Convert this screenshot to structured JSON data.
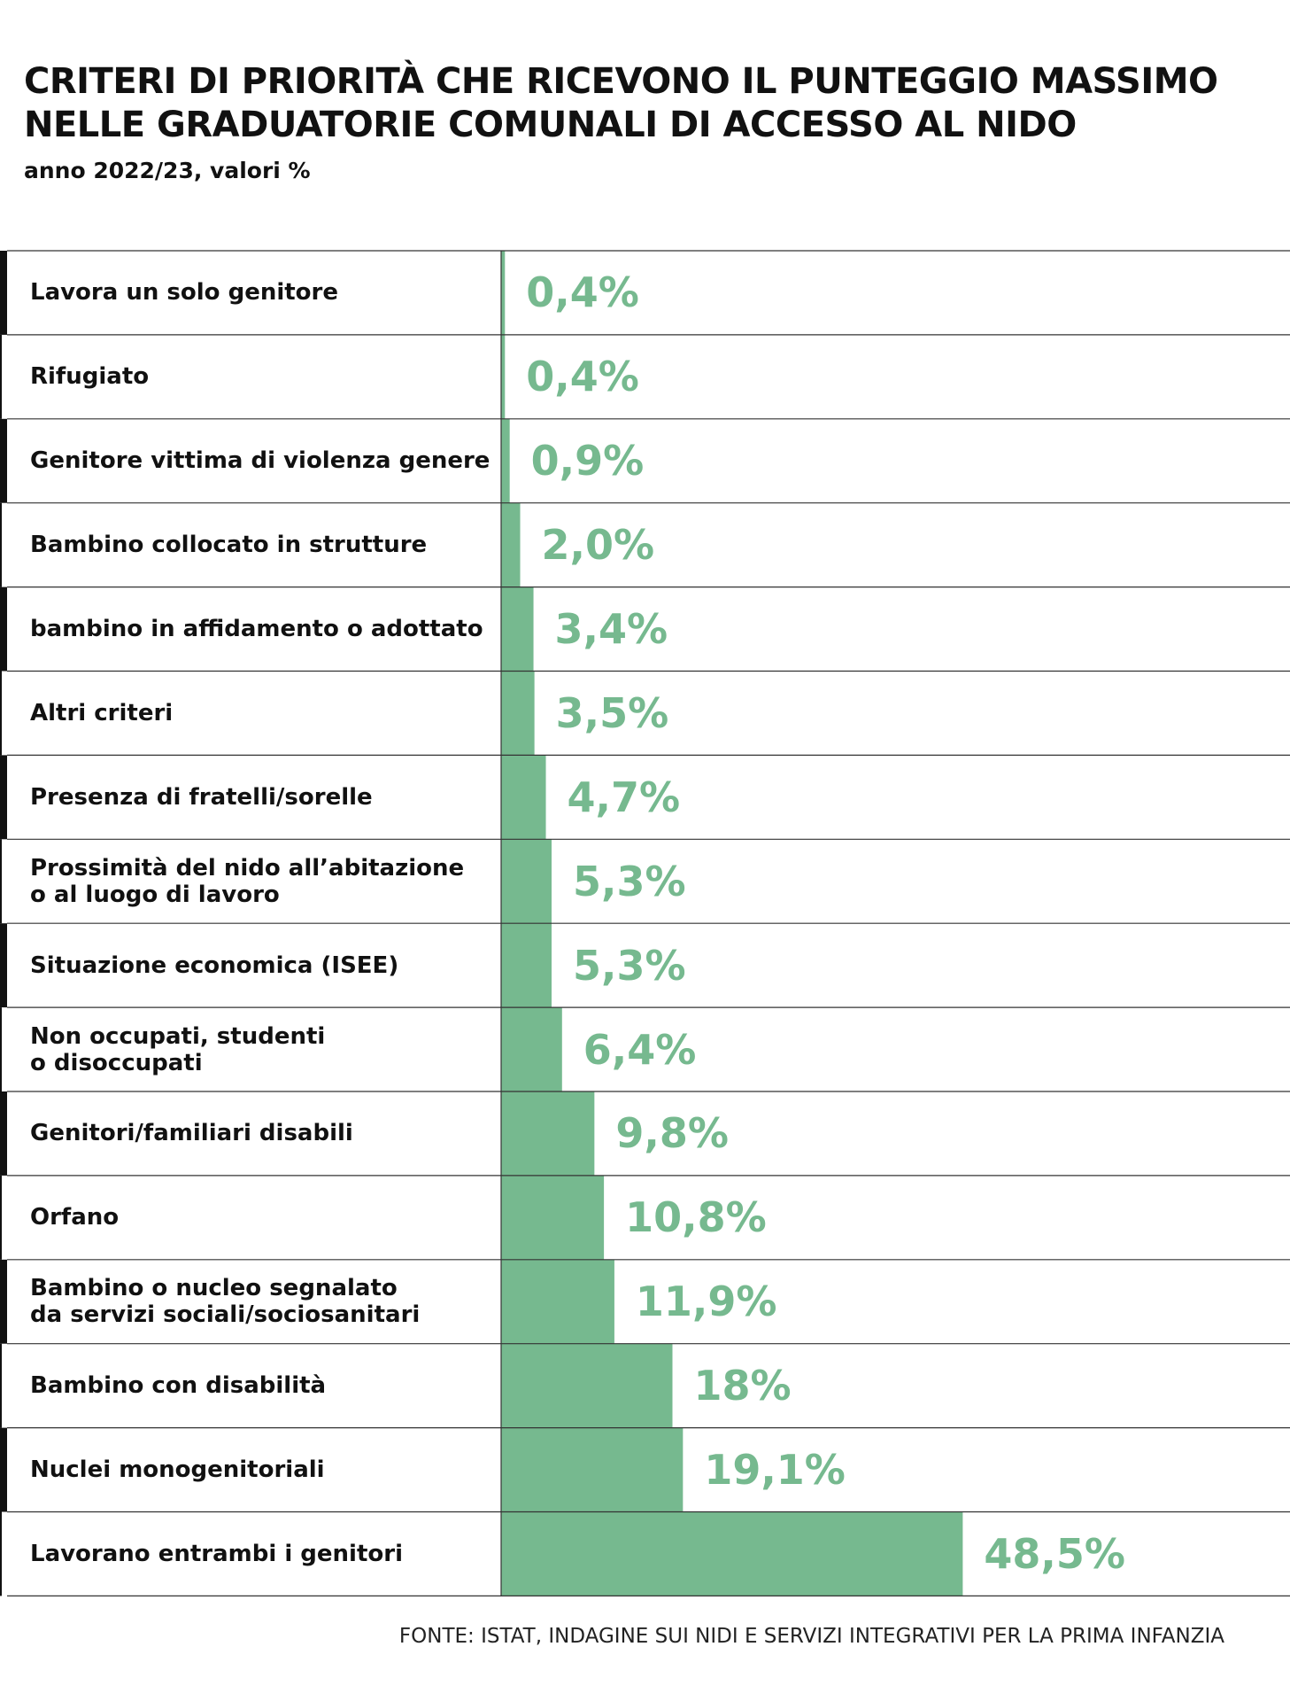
{
  "chart_data": {
    "type": "bar",
    "orientation": "horizontal",
    "title": "CRITERI DI PRIORITÀ CHE RICEVONO IL PUNTEGGIO MASSIMO\nNELLE GRADUATORIE COMUNALI DI ACCESSO AL NIDO",
    "subtitle": "anno 2022/23, valori %",
    "categories": [
      "Lavora un solo genitore",
      "Rifugiato",
      "Genitore vittima di violenza genere",
      "Bambino collocato in strutture",
      "bambino in affidamento o adottato",
      "Altri criteri",
      "Presenza di fratelli/sorelle",
      "Prossimità del nido all’abitazione\no al luogo di lavoro",
      "Situazione economica (ISEE)",
      "Non occupati, studenti\no disoccupati",
      "Genitori/familiari disabili",
      "Orfano",
      "Bambino o nucleo segnalato\nda servizi sociali/sociosanitari",
      "Bambino con disabilità",
      "Nuclei monogenitoriali",
      "Lavorano entrambi i genitori"
    ],
    "values": [
      0.4,
      0.4,
      0.9,
      2.0,
      3.4,
      3.5,
      4.7,
      5.3,
      5.3,
      6.4,
      9.8,
      10.8,
      11.9,
      18,
      19.1,
      48.5
    ],
    "value_labels": [
      "0,4%",
      "0,4%",
      "0,9%",
      "2,0%",
      "3,4%",
      "3,5%",
      "4,7%",
      "5,3%",
      "5,3%",
      "6,4%",
      "9,8%",
      "10,8%",
      "11,9%",
      "18%",
      "19,1%",
      "48,5%"
    ],
    "color": "#76b98f",
    "source": "FONTE: ISTAT, INDAGINE SUI NIDI E SERVIZI INTEGRATIVI PER LA PRIMA INFANZIA"
  }
}
